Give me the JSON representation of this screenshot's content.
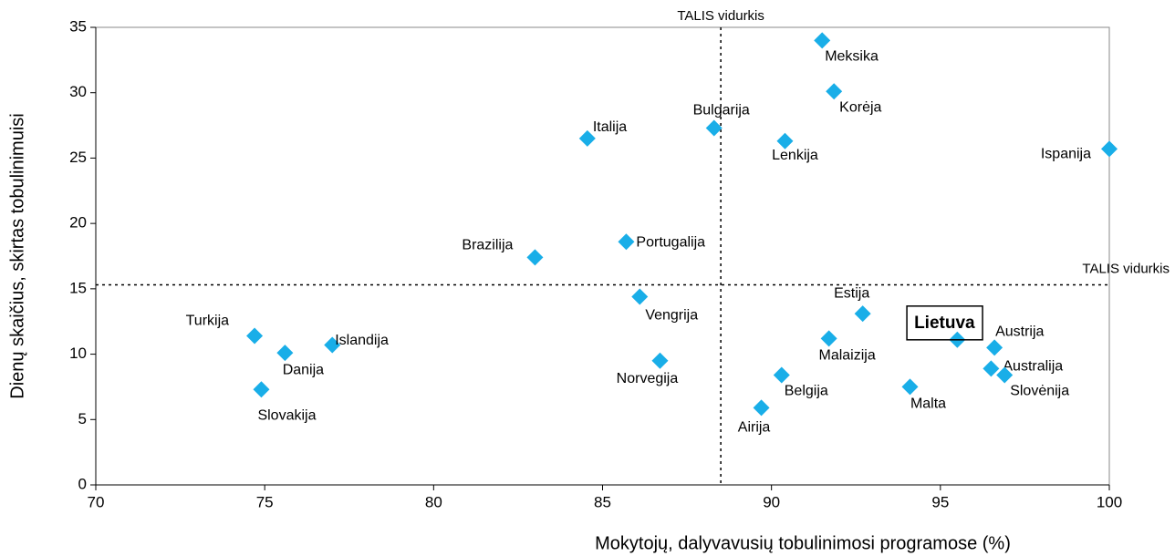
{
  "chart_data": {
    "type": "scatter",
    "xlabel": "Mokytojų, dalyvavusių tobulinimosi programose (%)",
    "ylabel": "Dienų skaičius, skirtas tobulinimuisi",
    "xlim": [
      70,
      100
    ],
    "xticks": [
      70,
      75,
      80,
      85,
      90,
      95,
      100
    ],
    "ylim": [
      0,
      35
    ],
    "yticks": [
      0,
      5,
      10,
      15,
      20,
      25,
      30,
      35
    ],
    "reference_lines": [
      {
        "axis": "x",
        "value": 88.5,
        "label": "TALIS vidurkis"
      },
      {
        "axis": "y",
        "value": 15.3,
        "label": "TALIS vidurkis"
      }
    ],
    "series": [
      {
        "color": "#19aee8",
        "labels": [
          "Meksika",
          "Korėja",
          "Bulgarija",
          "Italija",
          "Lenkija",
          "Ispanija",
          "Portugalija",
          "Brazilija",
          "Vengrija",
          "Estija",
          "Malaizija",
          "Austrija",
          "Lietuva",
          "Turkija",
          "Danija",
          "Islandija",
          "Norvegija",
          "Australija",
          "Slovėnija",
          "Belgija",
          "Malta",
          "Slovakija",
          "Airija"
        ],
        "x": [
          91.5,
          91.85,
          88.3,
          84.55,
          90.4,
          100,
          85.7,
          83.0,
          86.1,
          92.7,
          91.7,
          96.6,
          95.5,
          74.7,
          75.6,
          77.0,
          86.7,
          96.5,
          96.9,
          90.3,
          94.1,
          74.9,
          89.7
        ],
        "values": [
          34.0,
          30.1,
          27.3,
          26.5,
          26.3,
          25.7,
          18.6,
          17.4,
          14.4,
          13.1,
          11.2,
          10.5,
          11.1,
          11.4,
          10.1,
          10.7,
          9.5,
          8.9,
          8.4,
          8.4,
          7.5,
          7.3,
          5.9
        ]
      }
    ],
    "highlight": "Lietuva"
  }
}
